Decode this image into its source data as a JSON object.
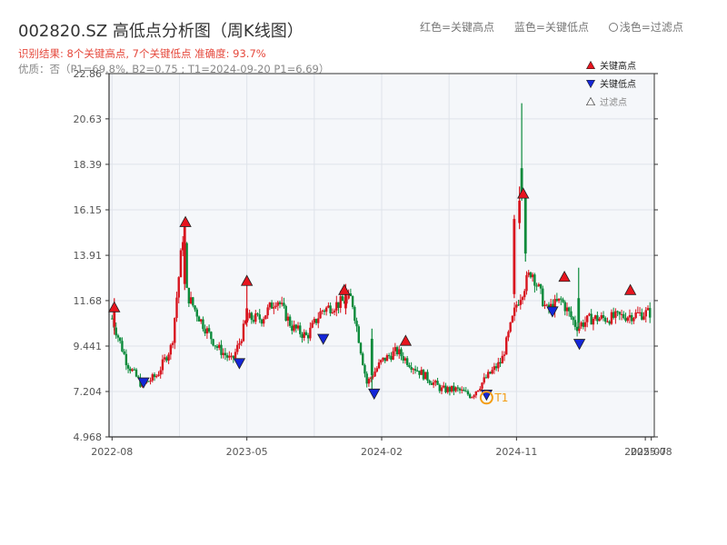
{
  "header": {
    "title": "002820.SZ 高低点分析图（周K线图）",
    "result_line": "识别结果: 8个关键高点, 7个关键低点  准确度: 93.7%",
    "detail_line": "优质：否（P1=69.8%, B2=0.75 ; T1=2024-09-20 P1=6.69）"
  },
  "top_legend": {
    "red": "红色=关键高点",
    "blue": "蓝色=关键低点",
    "light": "浅色=过滤点"
  },
  "chart_data": {
    "type": "candlestick",
    "y_ticks": [
      "22.86",
      "20.63",
      "18.39",
      "16.15",
      "13.91",
      "11.68",
      "9.441",
      "7.204",
      "4.968"
    ],
    "ylim": [
      4.968,
      22.86
    ],
    "x_ticks": [
      {
        "t": 0,
        "label": "2022-08"
      },
      {
        "t": 9,
        "label": "2023-05"
      },
      {
        "t": 18,
        "label": "2024-02"
      },
      {
        "t": 27,
        "label": "2024-11"
      },
      {
        "t": 35.6,
        "label": "2025-07"
      },
      {
        "t": 36,
        "label": "2025-08"
      }
    ],
    "xlim": [
      -0.2,
      36.2
    ],
    "legend": [
      {
        "label": "关键高点",
        "color": "#e8141e"
      },
      {
        "label": "关键低点",
        "color": "#1426d8"
      },
      {
        "label": "过滤点",
        "color": "#ffffff"
      }
    ],
    "annotation": "T1",
    "anchors": [
      [
        0,
        10.8
      ],
      [
        1,
        8.6
      ],
      [
        2,
        7.5
      ],
      [
        3,
        8.0
      ],
      [
        4,
        9.5
      ],
      [
        4.8,
        15.4
      ],
      [
        5,
        12.0
      ],
      [
        6,
        10.6
      ],
      [
        7,
        9.4
      ],
      [
        8,
        8.7
      ],
      [
        8.5,
        9.6
      ],
      [
        9,
        10.8
      ],
      [
        10,
        10.8
      ],
      [
        11,
        11.8
      ],
      [
        12,
        10.4
      ],
      [
        13,
        9.9
      ],
      [
        14,
        11.2
      ],
      [
        15,
        11.5
      ],
      [
        16,
        11.8
      ],
      [
        17,
        7.6
      ],
      [
        18,
        8.7
      ],
      [
        19,
        9.2
      ],
      [
        20,
        8.5
      ],
      [
        21,
        7.9
      ],
      [
        22,
        7.3
      ],
      [
        23,
        7.3
      ],
      [
        24,
        7.0
      ],
      [
        25,
        7.9
      ],
      [
        26,
        8.7
      ],
      [
        27,
        11.5
      ],
      [
        28,
        13.2
      ],
      [
        29,
        11.2
      ],
      [
        30,
        11.7
      ],
      [
        31,
        10.4
      ],
      [
        32,
        10.8
      ],
      [
        33,
        10.8
      ],
      [
        34,
        10.9
      ],
      [
        35,
        11.0
      ],
      [
        36,
        11.1
      ]
    ],
    "spikes": [
      {
        "t": 0.15,
        "o": 10.4,
        "c": 11.4,
        "h": 11.8,
        "l": 10.0
      },
      {
        "t": 4.85,
        "o": 12.5,
        "c": 15.3,
        "h": 15.6,
        "l": 12.2
      },
      {
        "t": 9.0,
        "o": 10.6,
        "c": 11.3,
        "h": 12.7,
        "l": 10.4
      },
      {
        "t": 15.6,
        "o": 11.3,
        "c": 12.0,
        "h": 12.5,
        "l": 11.0
      },
      {
        "t": 26.85,
        "o": 12.0,
        "c": 15.7,
        "h": 15.9,
        "l": 11.8
      },
      {
        "t": 27.2,
        "o": 15.5,
        "c": 16.6,
        "h": 17.3,
        "l": 15.2
      },
      {
        "t": 27.35,
        "o": 18.2,
        "c": 16.8,
        "h": 21.4,
        "l": 16.6
      },
      {
        "t": 27.6,
        "o": 16.9,
        "c": 14.0,
        "h": 17.0,
        "l": 13.6
      },
      {
        "t": 31.15,
        "o": 11.8,
        "c": 10.6,
        "h": 13.3,
        "l": 10.3
      },
      {
        "t": 17.35,
        "o": 9.8,
        "c": 8.0,
        "h": 10.3,
        "l": 7.3
      }
    ],
    "highs": [
      {
        "t": 0.15,
        "p": 11.35
      },
      {
        "t": 4.9,
        "p": 15.55
      },
      {
        "t": 9.0,
        "p": 12.65
      },
      {
        "t": 15.5,
        "p": 12.2
      },
      {
        "t": 19.6,
        "p": 9.7
      },
      {
        "t": 27.45,
        "p": 16.95
      },
      {
        "t": 30.2,
        "p": 12.85
      },
      {
        "t": 34.6,
        "p": 12.2
      }
    ],
    "lows": [
      {
        "t": 2.1,
        "p": 7.65
      },
      {
        "t": 8.5,
        "p": 8.6
      },
      {
        "t": 14.1,
        "p": 9.8
      },
      {
        "t": 17.5,
        "p": 7.1
      },
      {
        "t": 25.0,
        "p": 7.05
      },
      {
        "t": 29.4,
        "p": 11.15
      },
      {
        "t": 31.2,
        "p": 9.55
      }
    ],
    "t1_marker": {
      "t": 25.0,
      "p": 6.9
    }
  },
  "colors": {
    "up": "#d8141e",
    "down": "#0a8a3a",
    "high": "#e8141e",
    "low": "#1426d8",
    "t1": "#f39c12",
    "grid": "#dfe3ea",
    "plot_bg": "#f5f7fa"
  }
}
